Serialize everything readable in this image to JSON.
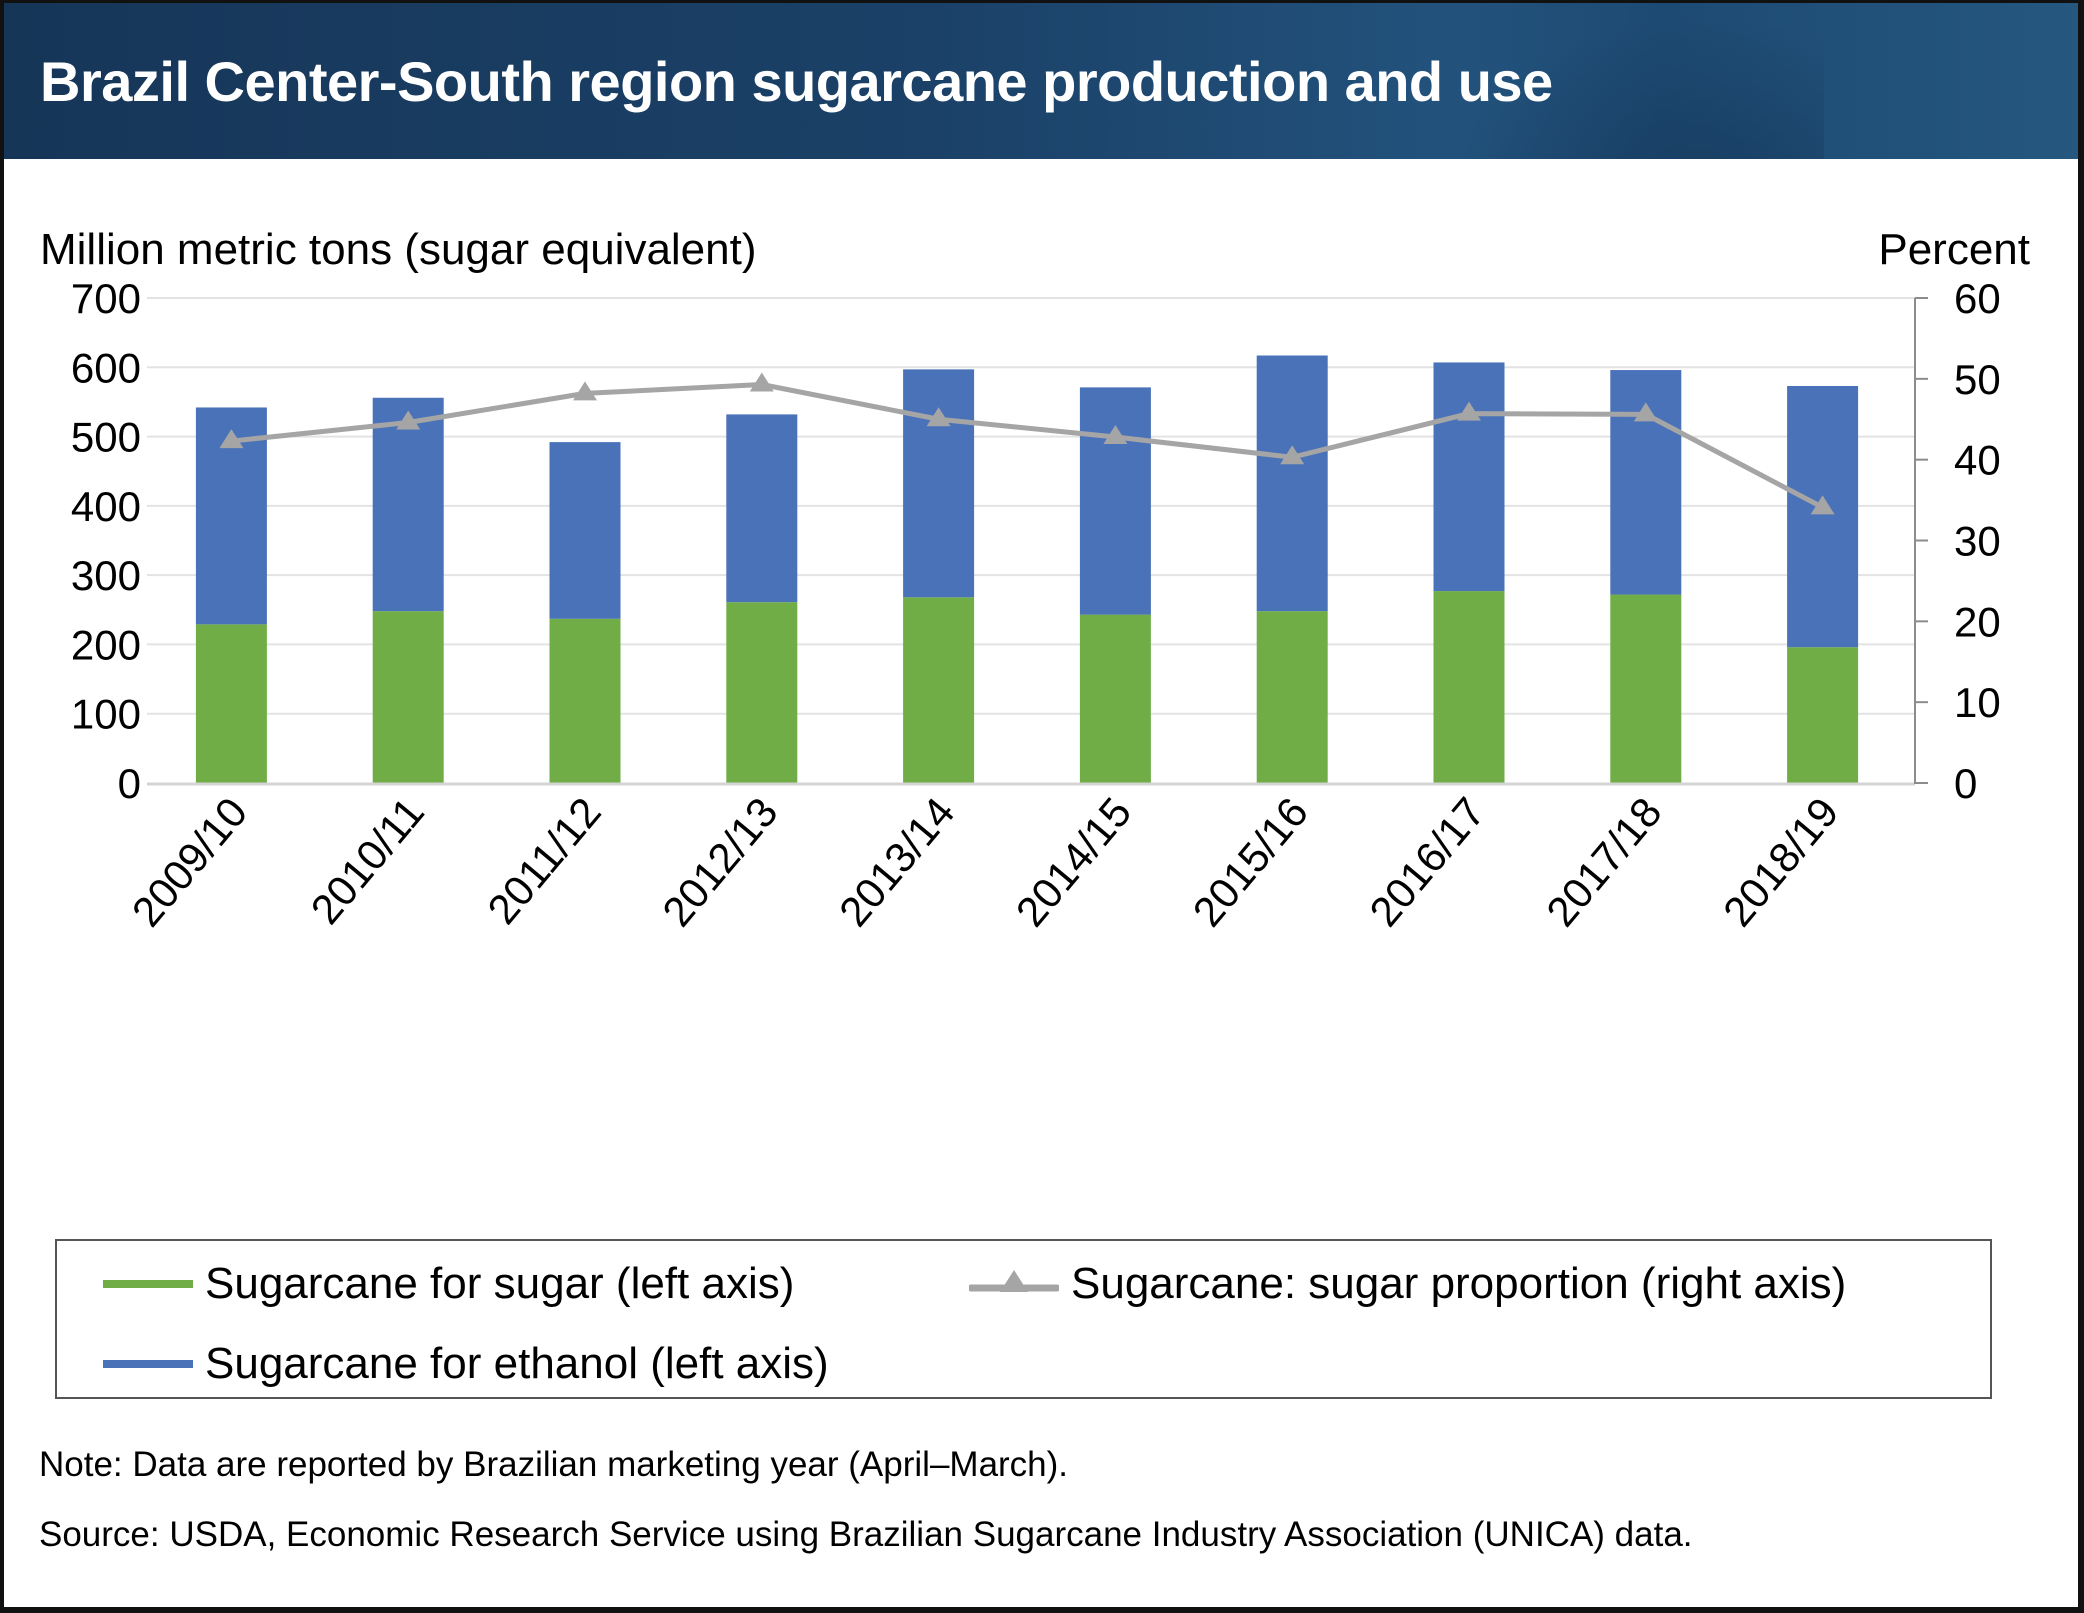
{
  "header": {
    "title": "Brazil Center-South region sugarcane production and use"
  },
  "axes": {
    "left_title": "Million metric tons (sugar equivalent)",
    "right_title": "Percent"
  },
  "colors": {
    "sugar": "#70ad47",
    "ethanol": "#4a72b8",
    "proportion": "#a5a5a5",
    "gridline": "#e3e3e3",
    "header_bg": "#173a5c"
  },
  "legend": {
    "items": [
      {
        "label": "Sugarcane for sugar (left axis)",
        "color": "#70ad47",
        "marker": "line"
      },
      {
        "label": "Sugarcane: sugar proportion (right axis)",
        "color": "#a5a5a5",
        "marker": "line-triangle"
      },
      {
        "label": "Sugarcane for ethanol (left axis)",
        "color": "#4a72b8",
        "marker": "line"
      }
    ]
  },
  "footer": {
    "note": "Note: Data are reported by Brazilian marketing year (April–March).",
    "source": "Source: USDA, Economic Research Service using Brazilian Sugarcane Industry Association (UNICA) data."
  },
  "chart_data": {
    "type": "bar",
    "subtype": "stacked-bar-with-line",
    "title": "Brazil Center-South region sugarcane production and use",
    "xlabel": "",
    "ylabel": "Million metric tons (sugar equivalent)",
    "y2label": "Percent",
    "categories": [
      "2009/10",
      "2010/11",
      "2011/12",
      "2012/13",
      "2013/14",
      "2014/15",
      "2015/16",
      "2016/17",
      "2017/18",
      "2018/19"
    ],
    "series": [
      {
        "name": "Sugarcane for sugar (left axis)",
        "axis": "left",
        "type": "bar",
        "stack": "total",
        "values": [
          229,
          248,
          237,
          261,
          268,
          243,
          248,
          277,
          272,
          196
        ]
      },
      {
        "name": "Sugarcane for ethanol (left axis)",
        "axis": "left",
        "type": "bar",
        "stack": "total",
        "values": [
          313,
          308,
          255,
          271,
          329,
          328,
          369,
          330,
          324,
          377
        ]
      },
      {
        "name": "Sugarcane: sugar proportion (right axis)",
        "axis": "right",
        "type": "line",
        "marker": "triangle",
        "values": [
          42.3,
          44.6,
          48.2,
          49.3,
          45.0,
          42.8,
          40.3,
          45.7,
          45.6,
          34.1
        ]
      }
    ],
    "ylim": [
      0,
      700
    ],
    "yticks": [
      0,
      100,
      200,
      300,
      400,
      500,
      600,
      700
    ],
    "y2lim": [
      0,
      60
    ],
    "y2ticks": [
      0,
      10,
      20,
      30,
      40,
      50,
      60
    ],
    "grid": true,
    "legend_position": "bottom"
  }
}
